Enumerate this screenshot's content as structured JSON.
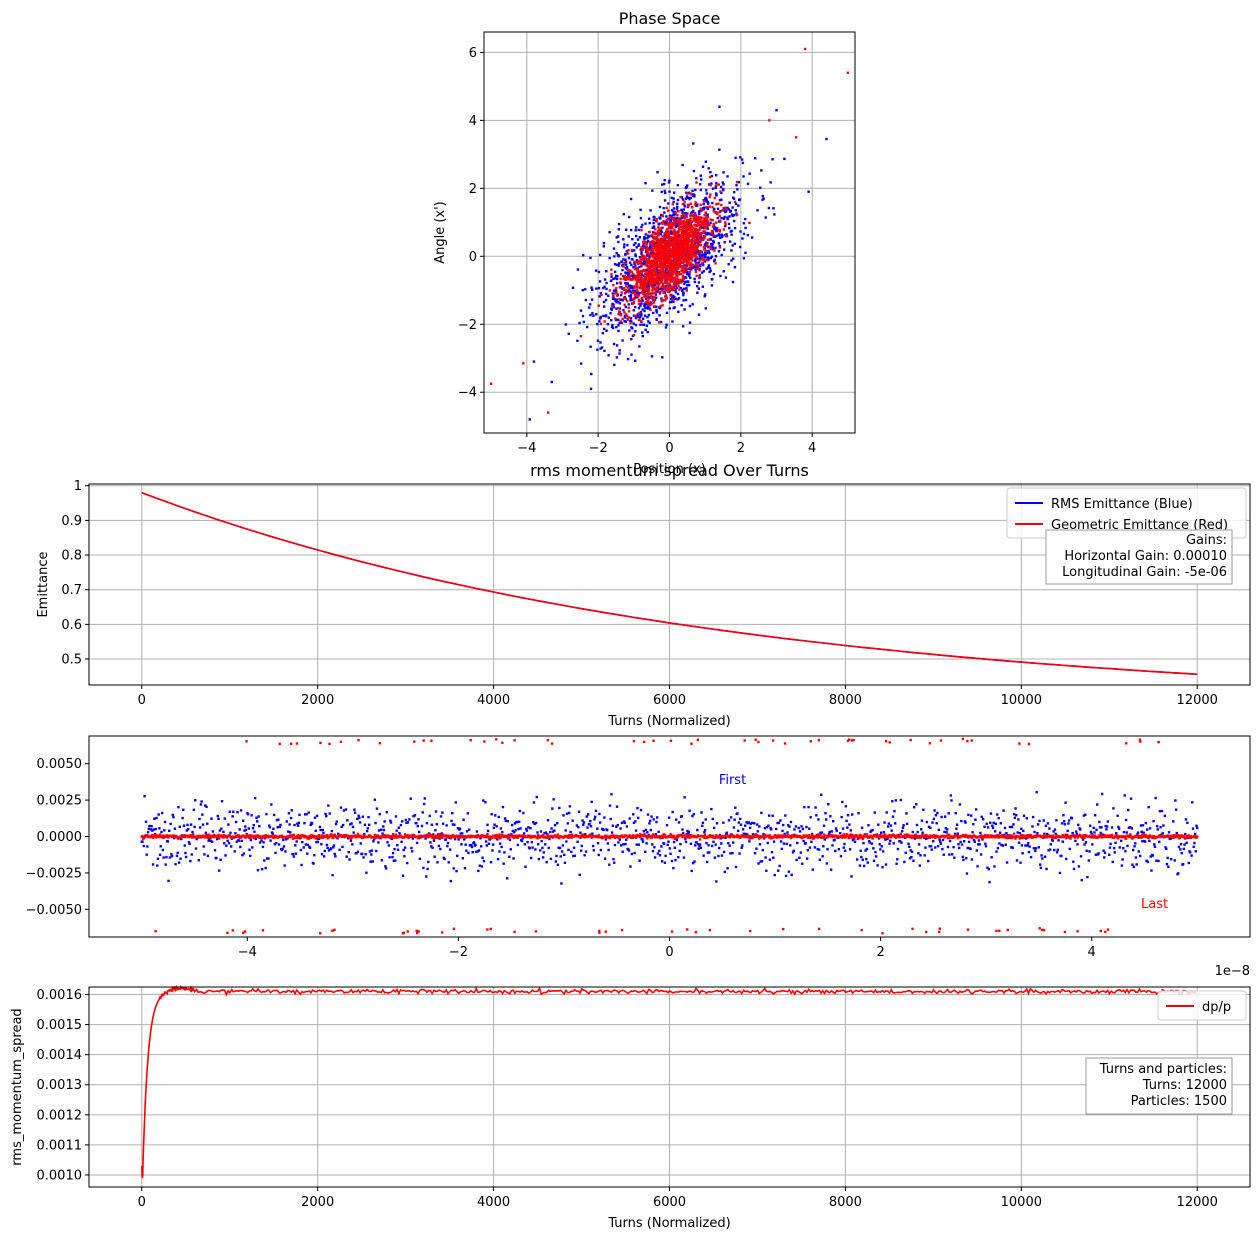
{
  "chart_data": [
    {
      "type": "scatter",
      "title": "Phase Space",
      "xlabel": "Position (x)",
      "ylabel": "Angle (x')",
      "xlim": [
        -5.2,
        5.2
      ],
      "ylim": [
        -5.2,
        6.6
      ],
      "xticks": [
        -4,
        -2,
        0,
        2,
        4
      ],
      "yticks": [
        -4,
        -2,
        0,
        2,
        4,
        6
      ],
      "grid": true,
      "series": [
        {
          "color": "#0000ff",
          "distribution": {
            "count": 1500,
            "sx": 1.0,
            "sy": 1.1,
            "corr": 0.62
          },
          "points": [
            [
              4.4,
              3.45
            ],
            [
              3.0,
              4.3
            ],
            [
              1.4,
              4.4
            ],
            [
              3.9,
              1.9
            ],
            [
              -3.8,
              -3.1
            ],
            [
              -3.3,
              -3.7
            ],
            [
              -2.2,
              -3.9
            ]
          ]
        },
        {
          "color": "#ff0000",
          "distribution": {
            "count": 1500,
            "sx": 0.6,
            "sy": 0.7,
            "corr": 0.65
          },
          "points": [
            [
              3.8,
              6.1
            ],
            [
              5.0,
              5.4
            ],
            [
              -5.0,
              -3.75
            ],
            [
              -3.4,
              -4.6
            ],
            [
              -4.1,
              -3.15
            ],
            [
              3.55,
              3.5
            ],
            [
              2.8,
              4.0
            ]
          ]
        }
      ]
    },
    {
      "type": "line",
      "title": "rms momentum spread Over Turns",
      "xlabel": "Turns (Normalized)",
      "ylabel": "Emittance",
      "xlim": [
        -600,
        12600
      ],
      "ylim": [
        0.425,
        1.005
      ],
      "xticks": [
        0,
        2000,
        4000,
        6000,
        8000,
        10000,
        12000
      ],
      "yticks": [
        0.5,
        0.6,
        0.7,
        0.8,
        0.9,
        1.0
      ],
      "grid": true,
      "legend": "top-right",
      "series": [
        {
          "name": "RMS Emittance (Blue)",
          "color": "#0000ff",
          "x": [
            0,
            12000
          ],
          "y": [
            0.98,
            0.456
          ],
          "decay": 0.000155
        },
        {
          "name": "Geometric Emittance (Red)",
          "color": "#ff0000",
          "x": [
            0,
            12000
          ],
          "y": [
            0.98,
            0.456
          ],
          "decay": 0.000155
        }
      ],
      "annotation": [
        "Gains:",
        "Horizontal Gain: 0.00010",
        "Longitudinal Gain: -5e-06"
      ]
    },
    {
      "type": "scatter",
      "xlim": [
        -5.5,
        5.5
      ],
      "ylim": [
        -0.0069,
        0.0069
      ],
      "xticks": [
        -4,
        -2,
        0,
        2,
        4
      ],
      "yticks": [
        -0.005,
        -0.0025,
        0.0,
        0.0025,
        0.005
      ],
      "xtick_labels": [
        "−4",
        "−2",
        "0",
        "2",
        "4"
      ],
      "ytick_labels": [
        "−0.0050",
        "−0.0025",
        "0.0000",
        "0.0025",
        "0.0050"
      ],
      "x_offset_label": "1e−8",
      "grid": false,
      "series": [
        {
          "color": "#0000ff",
          "distribution": {
            "count": 1500,
            "x_range": [
              -5,
              5
            ],
            "y_sd": 0.0011
          }
        },
        {
          "color": "#ff0000",
          "distribution": {
            "count": 1500,
            "x_range": [
              -5,
              5
            ],
            "y_sd": 6e-05,
            "outliers_top": 50,
            "outliers_bottom": 50,
            "outlier_level": 0.0065
          }
        }
      ],
      "annotations": [
        {
          "text": "First",
          "color": "#0000ff",
          "x": 0.6,
          "y": 0.0036
        },
        {
          "text": "Last",
          "color": "#ff0000",
          "x": 4.6,
          "y": -0.0049
        }
      ]
    },
    {
      "type": "line",
      "xlabel": "Turns (Normalized)",
      "ylabel": "rms_momentum_spread",
      "xlim": [
        -600,
        12600
      ],
      "ylim": [
        0.00096,
        0.001625
      ],
      "xticks": [
        0,
        2000,
        4000,
        6000,
        8000,
        10000,
        12000
      ],
      "yticks": [
        0.001,
        0.0011,
        0.0012,
        0.0013,
        0.0014,
        0.0015,
        0.0016
      ],
      "ytick_labels": [
        "0.0010",
        "0.0011",
        "0.0012",
        "0.0013",
        "0.0014",
        "0.0015",
        "0.0016"
      ],
      "grid": true,
      "legend": "top-right",
      "series": [
        {
          "name": "dp/p",
          "color": "#ff0000",
          "x": [
            0,
            12000
          ],
          "start": 0.001,
          "plateau": 0.00161,
          "rise": 60
        }
      ],
      "annotation": [
        "Turns and particles:",
        "Turns: 12000",
        "Particles: 1500"
      ]
    }
  ]
}
